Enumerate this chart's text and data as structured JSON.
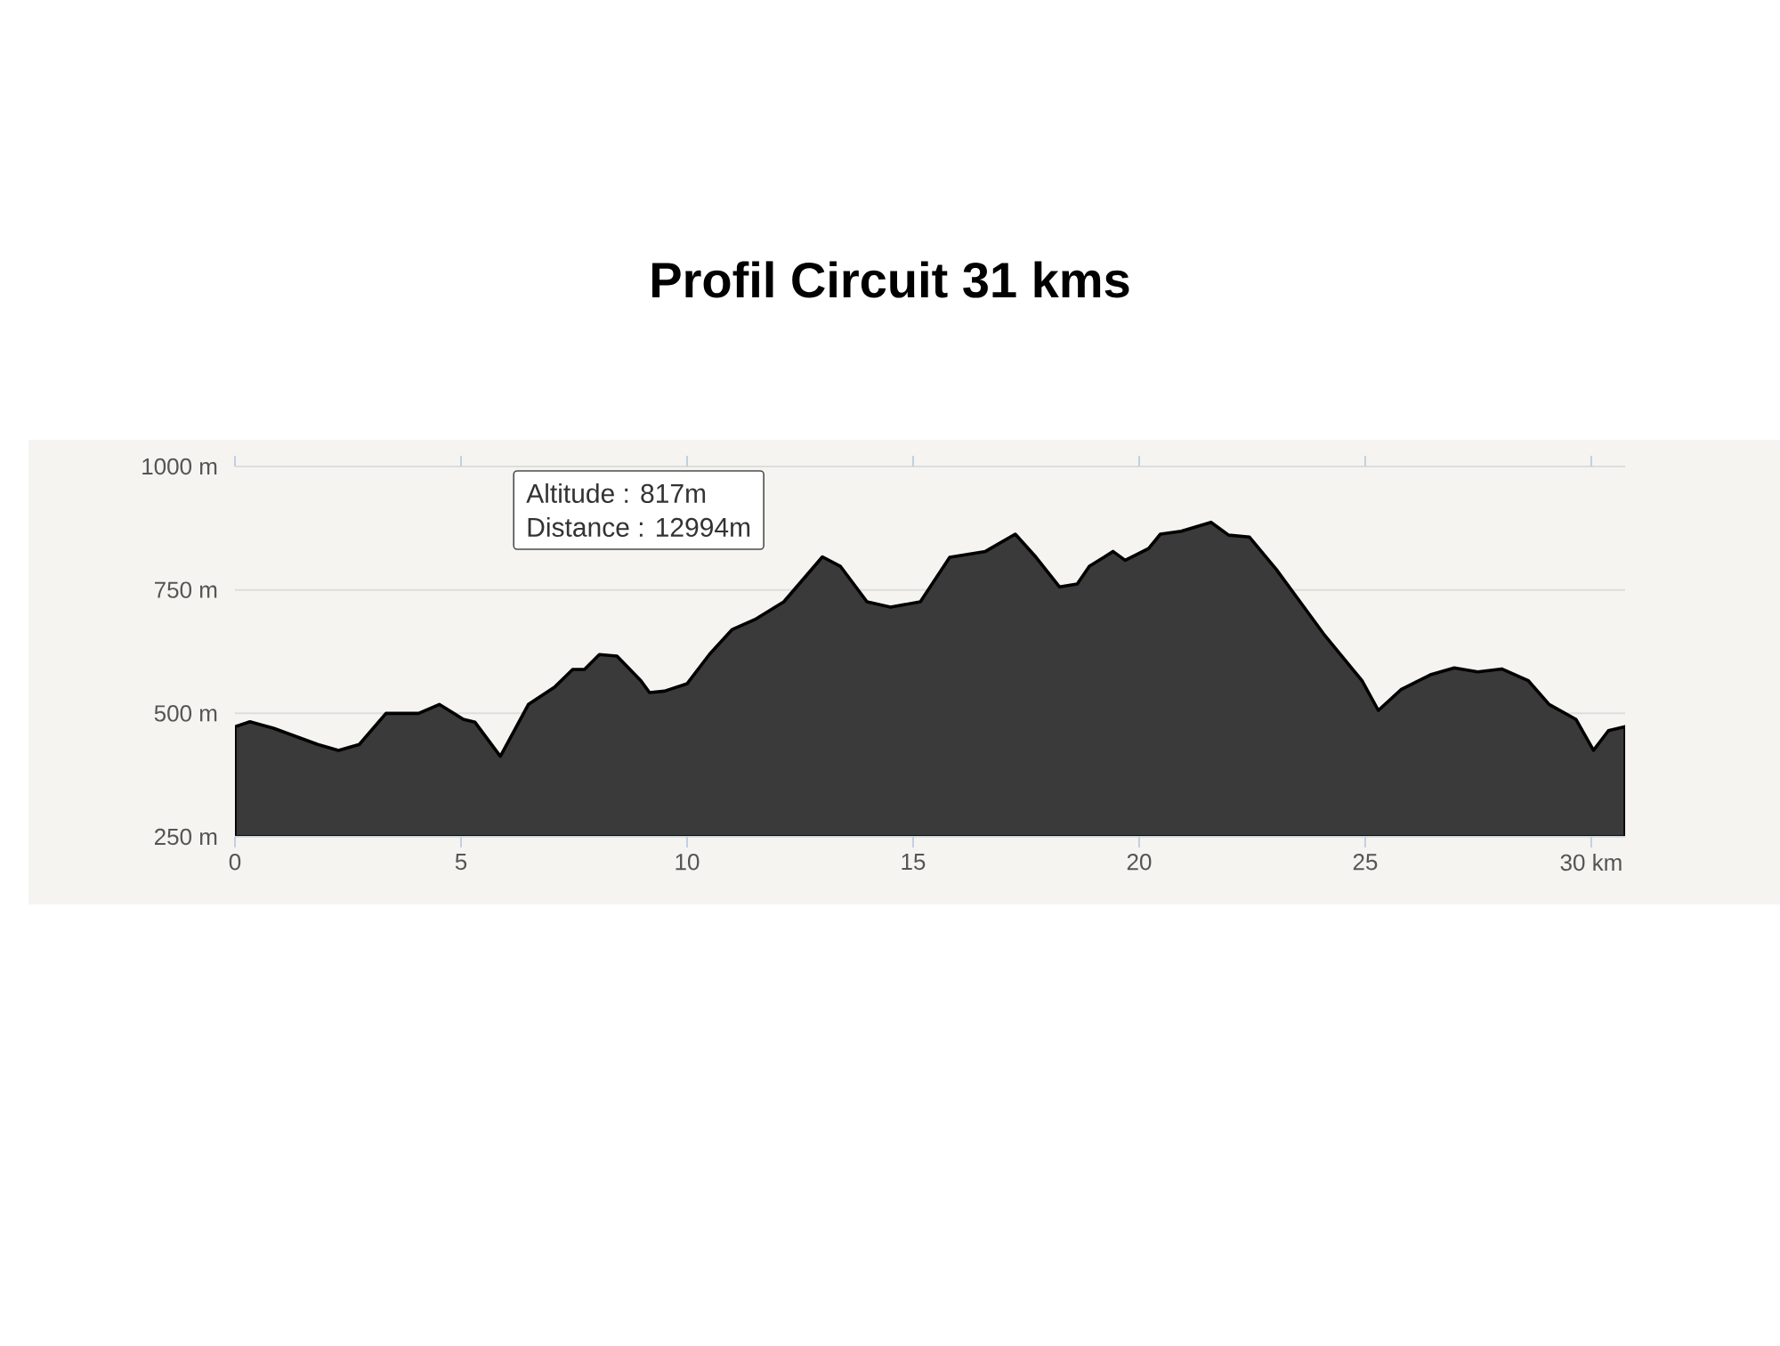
{
  "chart_data": {
    "type": "area",
    "title": "Profil Circuit 31 kms",
    "x": [
      0,
      0.33,
      0.85,
      1.83,
      2.29,
      2.75,
      3.34,
      4.06,
      4.52,
      5.05,
      5.31,
      5.87,
      6.49,
      7.08,
      7.47,
      7.73,
      8.06,
      8.45,
      8.98,
      9.17,
      9.5,
      10,
      10.5,
      11,
      11.5,
      12.14,
      12.994,
      13.39,
      13.98,
      14.5,
      15.16,
      15.81,
      16.6,
      17.26,
      17.72,
      18.24,
      18.63,
      18.9,
      19.22,
      19.42,
      19.69,
      20.21,
      20.47,
      20.93,
      21.59,
      21.98,
      22.44,
      23.03,
      23.56,
      24.08,
      24.93,
      25.29,
      25.79,
      26.44,
      26.97,
      27.49,
      28.02,
      28.61,
      29.07,
      29.66,
      30.05,
      30.38,
      30.75
    ],
    "values": [
      473,
      483,
      470,
      437,
      425,
      437,
      500,
      500,
      518,
      488,
      482,
      413,
      518,
      554,
      589,
      589,
      619,
      616,
      566,
      542,
      545,
      560,
      620,
      670,
      690,
      726,
      817,
      798,
      726,
      715,
      726,
      816,
      828,
      863,
      816,
      756,
      762,
      798,
      816,
      828,
      810,
      834,
      863,
      869,
      887,
      861,
      857,
      792,
      726,
      661,
      566,
      506,
      548,
      578,
      592,
      584,
      590,
      566,
      518,
      488,
      425,
      465,
      473
    ],
    "color": "#3a3a3a",
    "xlim": [
      0,
      30.75
    ],
    "ylim": [
      250,
      1000
    ],
    "xticks": [
      0,
      5,
      10,
      15,
      20,
      25,
      {
        "value": 30,
        "label": "30 km"
      }
    ],
    "yticks": [
      {
        "value": 250,
        "label": "250 m"
      },
      {
        "value": 500,
        "label": "500 m"
      },
      {
        "value": 750,
        "label": "750 m"
      },
      {
        "value": 1000,
        "label": "1000 m"
      }
    ],
    "grid": "y",
    "annotations": [
      "Altitude : 817m",
      "Distance : 12994m"
    ]
  }
}
